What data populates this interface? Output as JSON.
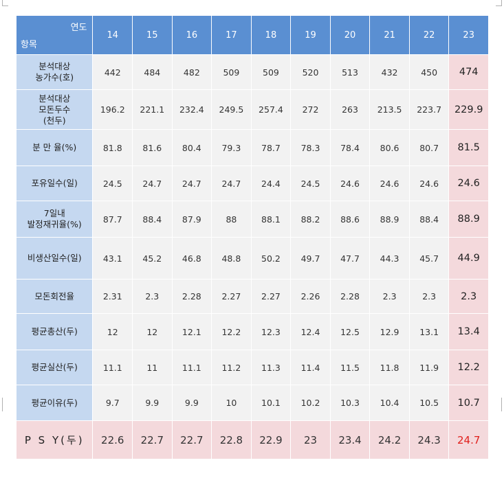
{
  "header": {
    "year_label": "연도",
    "item_label": "항목",
    "years": [
      "14",
      "15",
      "16",
      "17",
      "18",
      "19",
      "20",
      "21",
      "22",
      "23"
    ]
  },
  "rows": [
    {
      "label": "분석대상\n농가수(호)",
      "values": [
        "442",
        "484",
        "482",
        "509",
        "509",
        "520",
        "513",
        "432",
        "450",
        "474"
      ]
    },
    {
      "label": "분석대상\n모돈두수\n(천두)",
      "values": [
        "196.2",
        "221.1",
        "232.4",
        "249.5",
        "257.4",
        "272",
        "263",
        "213.5",
        "223.7",
        "229.9"
      ]
    },
    {
      "label": "분 만 율(%)",
      "values": [
        "81.8",
        "81.6",
        "80.4",
        "79.3",
        "78.7",
        "78.3",
        "78.4",
        "80.6",
        "80.7",
        "81.5"
      ]
    },
    {
      "label": "포유일수(일)",
      "values": [
        "24.5",
        "24.7",
        "24.7",
        "24.7",
        "24.4",
        "24.5",
        "24.6",
        "24.6",
        "24.6",
        "24.6"
      ]
    },
    {
      "label": "7일내\n발정재귀율(%)",
      "values": [
        "87.7",
        "88.4",
        "87.9",
        "88",
        "88.1",
        "88.2",
        "88.6",
        "88.9",
        "88.4",
        "88.9"
      ]
    },
    {
      "label": "비생산일수(일)",
      "values": [
        "43.1",
        "45.2",
        "46.8",
        "48.8",
        "50.2",
        "49.7",
        "47.7",
        "44.3",
        "45.7",
        "44.9"
      ]
    },
    {
      "label": "모돈회전율",
      "values": [
        "2.31",
        "2.3",
        "2.28",
        "2.27",
        "2.27",
        "2.26",
        "2.28",
        "2.3",
        "2.3",
        "2.3"
      ]
    },
    {
      "label": "평균총산(두)",
      "values": [
        "12",
        "12",
        "12.1",
        "12.2",
        "12.3",
        "12.4",
        "12.5",
        "12.9",
        "13.1",
        "13.4"
      ]
    },
    {
      "label": "평균실산(두)",
      "values": [
        "11.1",
        "11",
        "11.1",
        "11.2",
        "11.3",
        "11.4",
        "11.5",
        "11.8",
        "11.9",
        "12.2"
      ]
    },
    {
      "label": "평균이유(두)",
      "values": [
        "9.7",
        "9.9",
        "9.9",
        "10",
        "10.1",
        "10.2",
        "10.3",
        "10.4",
        "10.5",
        "10.7"
      ]
    }
  ],
  "psy_row": {
    "label": "P S Y(두)",
    "values": [
      "22.6",
      "22.7",
      "22.7",
      "22.8",
      "22.9",
      "23",
      "23.4",
      "24.2",
      "24.3",
      "24.7"
    ]
  },
  "colors": {
    "header": "#5a8fd2",
    "item": "#c5d8f0",
    "value": "#f2f2f2",
    "highlight": "#f4d9dc",
    "psy_highlight_text": "#e0201c"
  }
}
